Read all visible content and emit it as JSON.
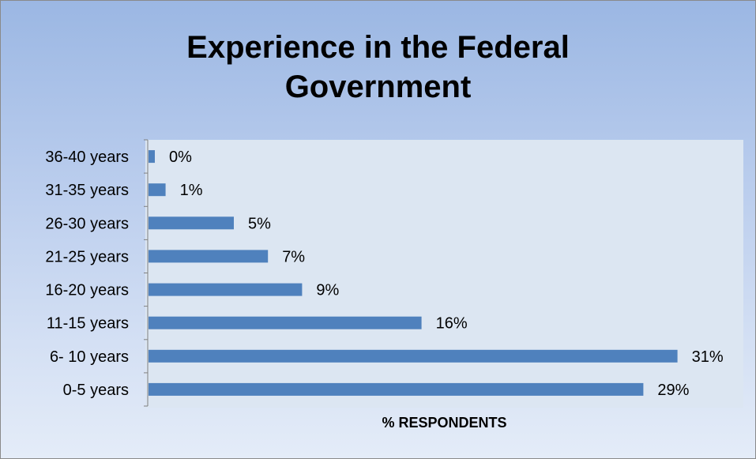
{
  "chart_data": {
    "type": "bar",
    "orientation": "horizontal",
    "title": "Experience in the Federal Government",
    "title_lines": [
      "Experience in the Federal",
      "Government"
    ],
    "xlabel": "% RESPONDENTS",
    "ylabel": "",
    "categories": [
      "36-40 years",
      "31-35 years",
      "26-30 years",
      "21-25 years",
      "16-20 years",
      "11-15 years",
      "6- 10 years",
      "0-5 years"
    ],
    "values": [
      0,
      1,
      5,
      7,
      9,
      16,
      31,
      29
    ],
    "data_labels": [
      "0%",
      "1%",
      "5%",
      "7%",
      "9%",
      "16%",
      "31%",
      "29%"
    ],
    "xlim": [
      0,
      33
    ],
    "grid": false,
    "legend": "none",
    "colors": {
      "bar": "#4f81bd",
      "plot_background": "#dce6f2",
      "axis": "#808080"
    }
  }
}
